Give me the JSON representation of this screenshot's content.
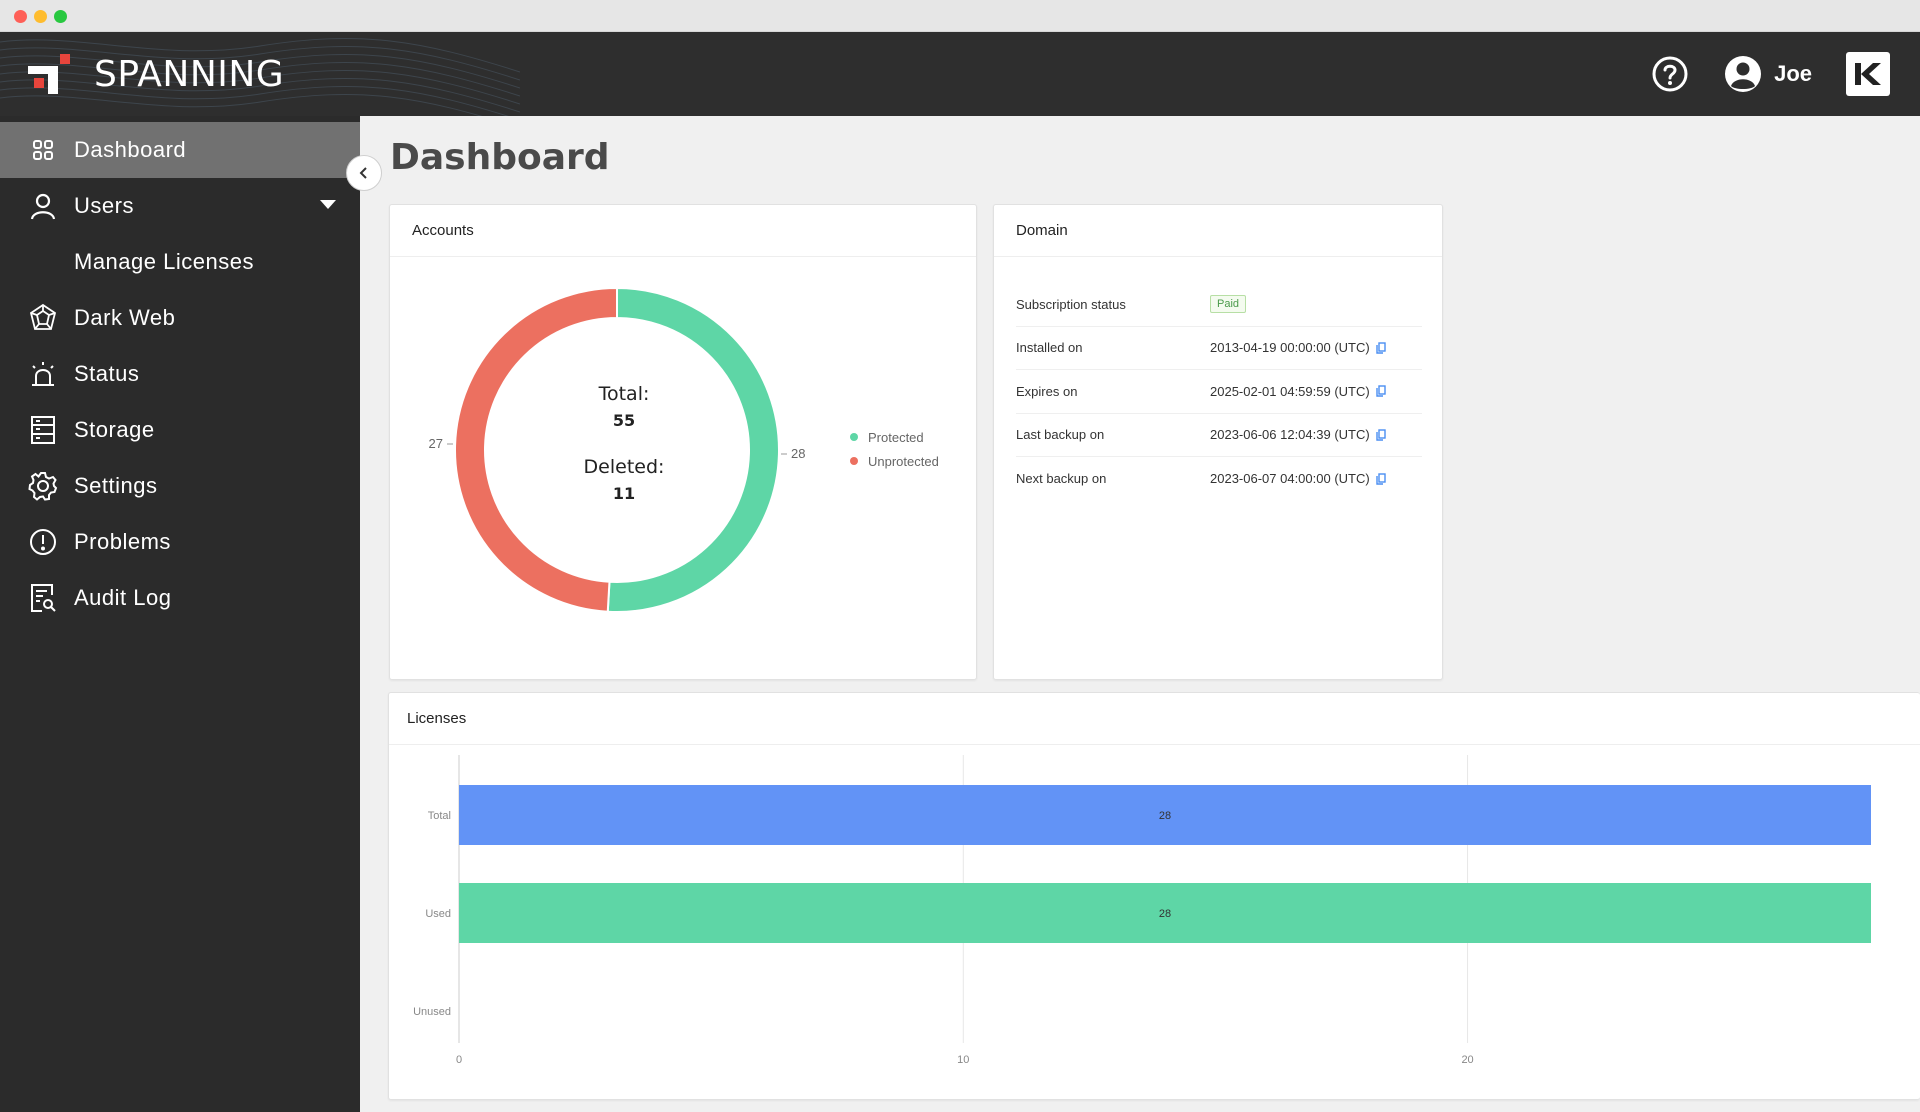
{
  "brand": {
    "name": "SPANNING"
  },
  "header": {
    "user_name": "Joe",
    "help_icon": "question-circle-icon",
    "user_icon": "user-circle-icon",
    "app_logo": "kaseya-k-logo"
  },
  "sidebar": {
    "items": [
      {
        "label": "Dashboard",
        "icon": "grid-icon",
        "active": true
      },
      {
        "label": "Users",
        "icon": "user-icon",
        "has_dropdown": true
      },
      {
        "label": "Manage Licenses",
        "sub": true
      },
      {
        "label": "Dark Web",
        "icon": "web-icon"
      },
      {
        "label": "Status",
        "icon": "alarm-icon"
      },
      {
        "label": "Storage",
        "icon": "server-icon"
      },
      {
        "label": "Settings",
        "icon": "gear-icon"
      },
      {
        "label": "Problems",
        "icon": "alert-circle-icon"
      },
      {
        "label": "Audit Log",
        "icon": "document-search-icon"
      }
    ]
  },
  "main": {
    "title": "Dashboard"
  },
  "accounts": {
    "title": "Accounts",
    "total_label": "Total:",
    "total_value": "55",
    "deleted_label": "Deleted:",
    "deleted_value": "11",
    "colors": {
      "protected": "#5ed6a6",
      "unprotected": "#ec7060"
    }
  },
  "domain": {
    "title": "Domain",
    "rows": [
      {
        "label": "Subscription status",
        "value": "Paid",
        "badge": true
      },
      {
        "label": "Installed on",
        "value": "2013-04-19 00:00:00 (UTC)"
      },
      {
        "label": "Expires on",
        "value": "2025-02-01 04:59:59 (UTC)"
      },
      {
        "label": "Last backup on",
        "value": "2023-06-06 12:04:39 (UTC)"
      },
      {
        "label": "Next backup on",
        "value": "2023-06-07 04:00:00 (UTC)"
      }
    ]
  },
  "licenses": {
    "title": "Licenses",
    "colors": {
      "total": "#6293f6",
      "used": "#5ed6a6"
    }
  },
  "chart_data": [
    {
      "type": "pie",
      "title": "Accounts",
      "categories": [
        "Protected",
        "Unprotected"
      ],
      "values": [
        28,
        27
      ],
      "legend": "right"
    },
    {
      "type": "bar",
      "orientation": "horizontal",
      "title": "Licenses",
      "categories": [
        "Total",
        "Used",
        "Unused"
      ],
      "values": [
        28,
        28,
        0
      ],
      "xlim": [
        0,
        28
      ],
      "xticks": [
        0,
        10,
        20
      ],
      "grid": true
    }
  ]
}
